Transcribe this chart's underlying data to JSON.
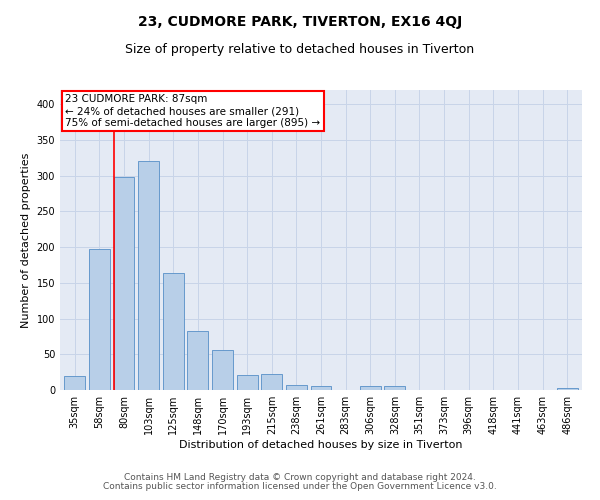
{
  "title": "23, CUDMORE PARK, TIVERTON, EX16 4QJ",
  "subtitle": "Size of property relative to detached houses in Tiverton",
  "xlabel": "Distribution of detached houses by size in Tiverton",
  "ylabel": "Number of detached properties",
  "categories": [
    "35sqm",
    "58sqm",
    "80sqm",
    "103sqm",
    "125sqm",
    "148sqm",
    "170sqm",
    "193sqm",
    "215sqm",
    "238sqm",
    "261sqm",
    "283sqm",
    "306sqm",
    "328sqm",
    "351sqm",
    "373sqm",
    "396sqm",
    "418sqm",
    "441sqm",
    "463sqm",
    "486sqm"
  ],
  "values": [
    20,
    197,
    298,
    320,
    164,
    83,
    56,
    21,
    22,
    7,
    6,
    0,
    5,
    5,
    0,
    0,
    0,
    0,
    0,
    0,
    3
  ],
  "bar_color": "#b8cfe8",
  "bar_edge_color": "#6699cc",
  "red_line_index": 2,
  "annotation_text": "23 CUDMORE PARK: 87sqm\n← 24% of detached houses are smaller (291)\n75% of semi-detached houses are larger (895) →",
  "annotation_box_color": "white",
  "annotation_box_edge": "red",
  "ylim": [
    0,
    420
  ],
  "yticks": [
    0,
    50,
    100,
    150,
    200,
    250,
    300,
    350,
    400
  ],
  "grid_color": "#c8d4e8",
  "bg_color": "#e4eaf4",
  "footer_line1": "Contains HM Land Registry data © Crown copyright and database right 2024.",
  "footer_line2": "Contains public sector information licensed under the Open Government Licence v3.0.",
  "title_fontsize": 10,
  "subtitle_fontsize": 9,
  "axis_label_fontsize": 8,
  "tick_fontsize": 7,
  "annotation_fontsize": 7.5,
  "footer_fontsize": 6.5
}
